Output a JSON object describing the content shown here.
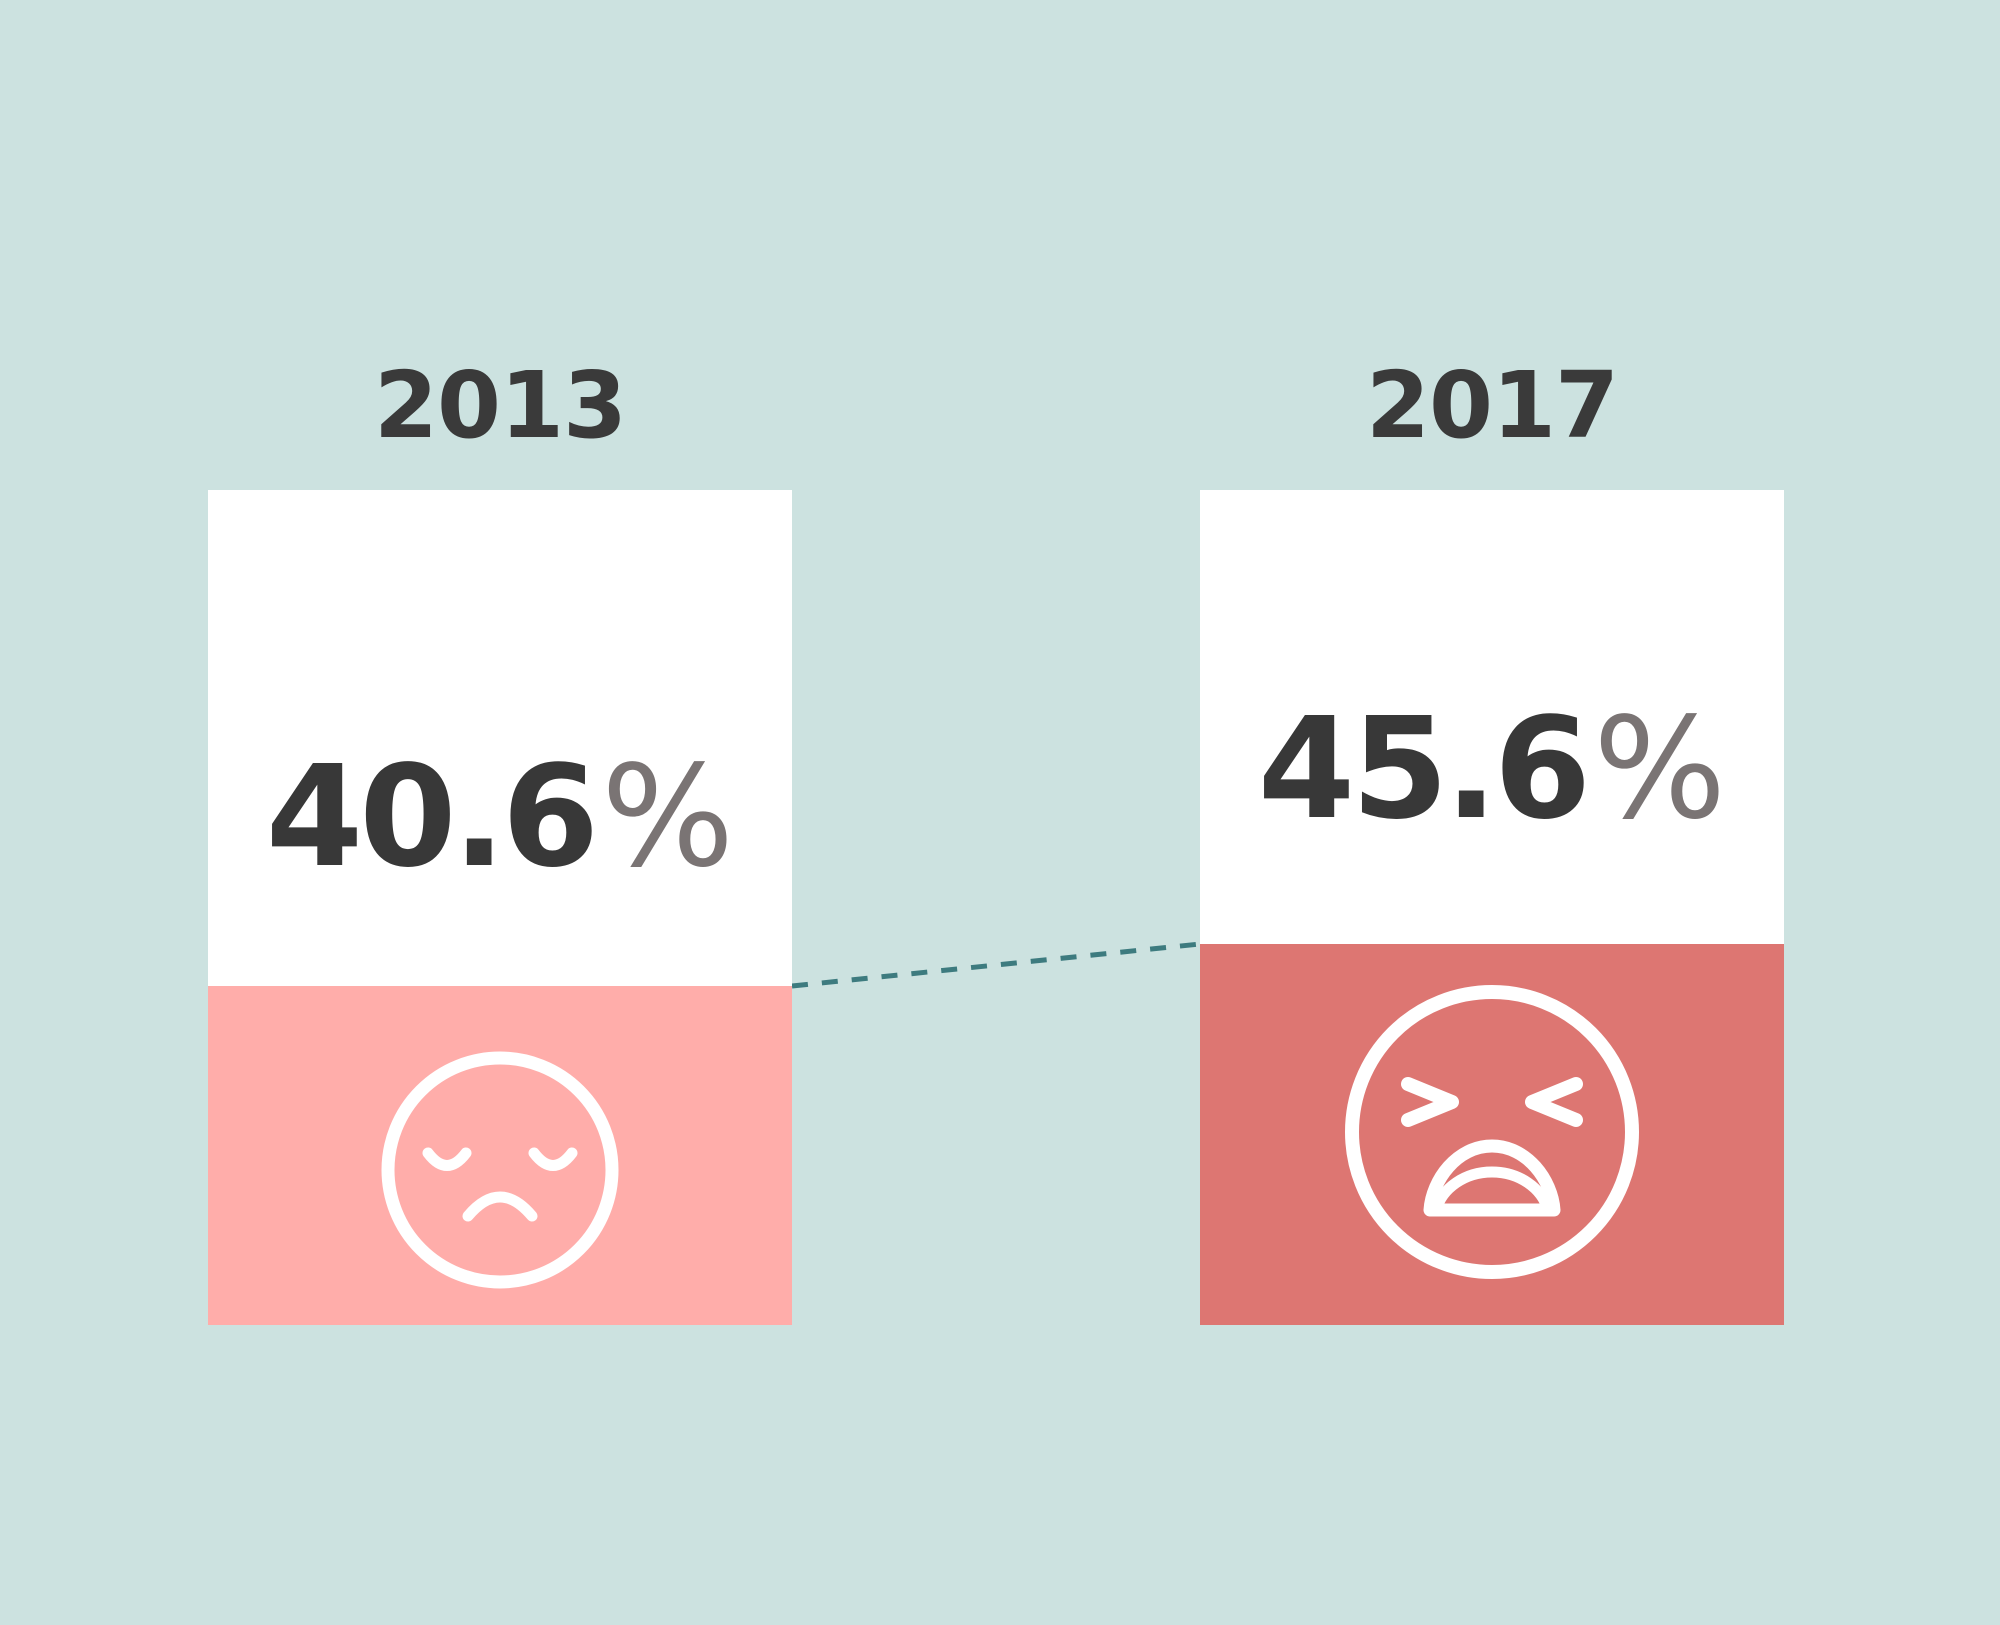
{
  "colors": {
    "background": "#cce2e0",
    "box": "#ffffff",
    "connector": "#3d7b7f",
    "text_dark": "#383838",
    "text_unit": "#7a7474"
  },
  "chart_data": {
    "type": "bar",
    "categories": [
      "2013",
      "2017"
    ],
    "values": [
      40.6,
      45.6
    ],
    "unit": "%",
    "ylim": [
      0,
      100
    ],
    "items": [
      {
        "year": "2013",
        "value_text": "40.6",
        "unit": "%",
        "value": 40.6,
        "fill_color": "#ffadaa",
        "icon": "sad-face-icon"
      },
      {
        "year": "2017",
        "value_text": "45.6",
        "unit": "%",
        "value": 45.6,
        "fill_color": "#dd7672",
        "icon": "angry-face-icon"
      }
    ]
  }
}
